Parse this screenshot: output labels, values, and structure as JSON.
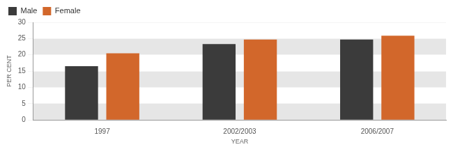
{
  "chart_data": {
    "type": "bar",
    "categories": [
      "1997",
      "2002/2003",
      "2006/2007"
    ],
    "series": [
      {
        "name": "Male",
        "color": "#3b3b3b",
        "values": [
          16.5,
          23.3,
          24.7
        ]
      },
      {
        "name": "Female",
        "color": "#d2672b",
        "values": [
          20.5,
          24.7,
          25.9
        ]
      }
    ],
    "x_label": "YEAR",
    "y_label": "PER CENT",
    "ylim": [
      0,
      30
    ],
    "yticks": [
      0,
      5,
      10,
      15,
      20,
      25,
      30
    ],
    "grid": true,
    "legend": "upper left"
  }
}
